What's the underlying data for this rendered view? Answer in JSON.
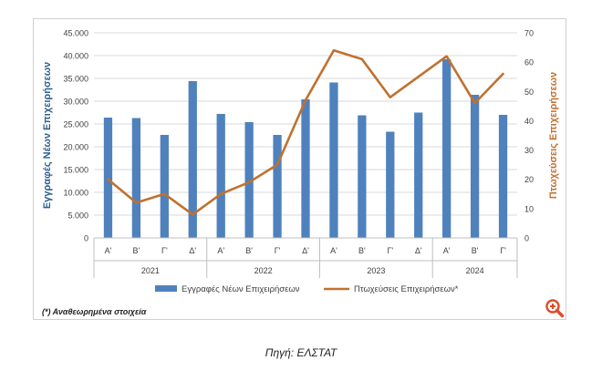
{
  "chart_data": {
    "type": "bar+line",
    "y_left": {
      "label": "Εγγραφές Νέων Επιχειρήσεων",
      "min": 0,
      "max": 45000,
      "step": 5000,
      "tick_labels": [
        "0",
        "5.000",
        "10.000",
        "15.000",
        "20.000",
        "25.000",
        "30.000",
        "35.000",
        "40.000",
        "45.000"
      ]
    },
    "y_right": {
      "label": "Πτωχεύσεις Επιχειρήσεων",
      "min": 0,
      "max": 70,
      "step": 10,
      "tick_labels": [
        "0",
        "10",
        "20",
        "30",
        "40",
        "50",
        "60",
        "70"
      ]
    },
    "categories": [
      "Α'",
      "Β'",
      "Γ'",
      "Δ'",
      "Α'",
      "Β'",
      "Γ'",
      "Δ'",
      "Α'",
      "Β'",
      "Γ'",
      "Δ'",
      "Α'",
      "Β'",
      "Γ'"
    ],
    "groups": [
      {
        "label": "2021",
        "count": 4
      },
      {
        "label": "2022",
        "count": 4
      },
      {
        "label": "2023",
        "count": 4
      },
      {
        "label": "2024",
        "count": 3
      }
    ],
    "series": [
      {
        "name": "Εγγραφές Νέων Επιχειρήσεων",
        "type": "bar",
        "axis": "left",
        "color": "#4f81bd",
        "values": [
          26400,
          26300,
          22600,
          34400,
          27200,
          25400,
          22600,
          30400,
          34100,
          26900,
          23300,
          27500,
          39200,
          31400,
          27000
        ]
      },
      {
        "name": "Πτωχεύσεις Επιχειρήσεων*",
        "type": "line",
        "axis": "right",
        "color": "#c0712f",
        "values": [
          20,
          12,
          15,
          8,
          15,
          19,
          25,
          47,
          64,
          61,
          48,
          55,
          62,
          46,
          56
        ]
      }
    ],
    "legend_position": "bottom",
    "grid": "horizontal"
  },
  "colors": {
    "left_axis_label": "#2e5f8e",
    "right_axis_label": "#c0712f",
    "grid": "#d9d9d9"
  },
  "footnote": "(*) Αναθεωρημένα στοιχεία",
  "source": "Πηγή: ΕΛΣΤΑΤ",
  "zoom_icon": "zoom-in-icon"
}
